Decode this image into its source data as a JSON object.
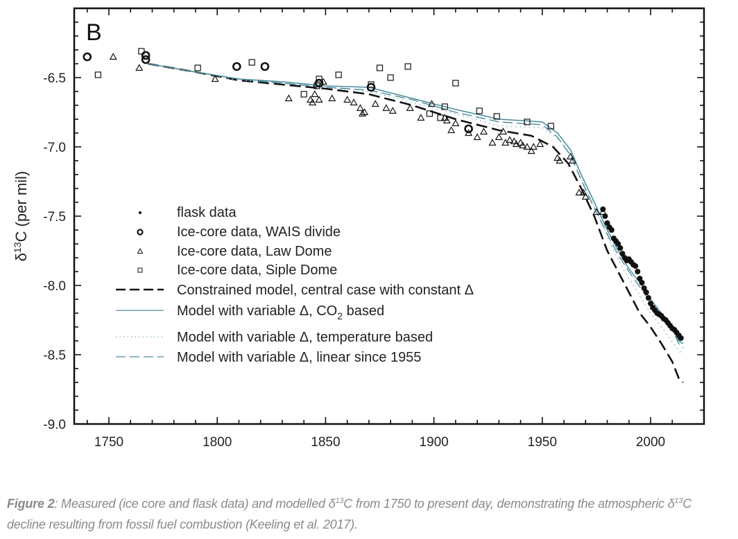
{
  "chart_data": {
    "type": "scatter",
    "panel_label": "B",
    "title": "",
    "xlabel": "",
    "ylabel_prefix": "δ",
    "ylabel_sup": "13",
    "ylabel_suffix": "C (per mil)",
    "xlim": [
      1728,
      2018
    ],
    "ylim": [
      -9.0,
      -6.0
    ],
    "xticks": [
      1750,
      1800,
      1850,
      1900,
      1950,
      2000
    ],
    "xtick_labels": [
      "1750",
      "1800",
      "1850",
      "1900",
      "1950",
      "2000"
    ],
    "yticks": [
      -6.5,
      -7.0,
      -7.5,
      -8.0,
      -8.5,
      -9.0
    ],
    "ytick_labels": [
      "-6.5",
      "-7.0",
      "-7.5",
      "-8.0",
      "-8.5",
      "-9.0"
    ],
    "grid": false,
    "legend_position": "center-left",
    "legend": [
      {
        "label": "flask data",
        "marker": "dot"
      },
      {
        "label": "Ice-core data, WAIS divide",
        "marker": "circle"
      },
      {
        "label": "Ice-core data, Law Dome",
        "marker": "triangle"
      },
      {
        "label": "Ice-core data, Siple Dome",
        "marker": "square"
      },
      {
        "label": "Constrained model, central case with constant Δ",
        "line": "dashed-black"
      },
      {
        "label_parts": [
          "Model with variable Δ, CO",
          "2",
          " based"
        ],
        "label": "Model with variable Δ, CO2 based",
        "line": "solid-blue"
      },
      {
        "label": "Model with variable Δ, temperature based",
        "line": "dotted-blue"
      },
      {
        "label": "Model with variable Δ, linear since 1955",
        "line": "dashed-blue"
      }
    ],
    "colors": {
      "black": "#111111",
      "blue": "#4a8a9c",
      "light_blue": "#8fb9c6",
      "axis": "#111111"
    },
    "series": [
      {
        "name": "Ice-core data, WAIS divide",
        "marker": "circle",
        "points": [
          [
            1740,
            -6.35
          ],
          [
            1767,
            -6.34
          ],
          [
            1767,
            -6.37
          ],
          [
            1809,
            -6.42
          ],
          [
            1822,
            -6.42
          ],
          [
            1847,
            -6.54
          ],
          [
            1871,
            -6.57
          ],
          [
            1916,
            -6.87
          ]
        ]
      },
      {
        "name": "Ice-core data, Law Dome",
        "marker": "triangle",
        "points": [
          [
            1752,
            -6.35
          ],
          [
            1764,
            -6.43
          ],
          [
            1799,
            -6.51
          ],
          [
            1833,
            -6.65
          ],
          [
            1843,
            -6.66
          ],
          [
            1844,
            -6.68
          ],
          [
            1845,
            -6.62
          ],
          [
            1847,
            -6.66
          ],
          [
            1849,
            -6.53
          ],
          [
            1853,
            -6.65
          ],
          [
            1860,
            -6.66
          ],
          [
            1863,
            -6.68
          ],
          [
            1866,
            -6.72
          ],
          [
            1867,
            -6.76
          ],
          [
            1868,
            -6.75
          ],
          [
            1873,
            -6.69
          ],
          [
            1878,
            -6.72
          ],
          [
            1881,
            -6.74
          ],
          [
            1889,
            -6.72
          ],
          [
            1894,
            -6.79
          ],
          [
            1899,
            -6.69
          ],
          [
            1905,
            -6.79
          ],
          [
            1906,
            -6.81
          ],
          [
            1908,
            -6.88
          ],
          [
            1910,
            -6.83
          ],
          [
            1916,
            -6.9
          ],
          [
            1920,
            -6.93
          ],
          [
            1923,
            -6.89
          ],
          [
            1927,
            -6.97
          ],
          [
            1930,
            -6.93
          ],
          [
            1932,
            -6.89
          ],
          [
            1933,
            -6.97
          ],
          [
            1935,
            -6.95
          ],
          [
            1937,
            -6.96
          ],
          [
            1938,
            -6.98
          ],
          [
            1940,
            -6.97
          ],
          [
            1941,
            -6.99
          ],
          [
            1943,
            -7.0
          ],
          [
            1945,
            -7.03
          ],
          [
            1946,
            -7.0
          ],
          [
            1949,
            -6.98
          ],
          [
            1957,
            -7.08
          ],
          [
            1958,
            -7.1
          ],
          [
            1963,
            -7.07
          ],
          [
            1964,
            -7.1
          ],
          [
            1967,
            -7.33
          ],
          [
            1969,
            -7.33
          ],
          [
            1970,
            -7.36
          ],
          [
            1975,
            -7.47
          ],
          [
            1978,
            -7.47
          ]
        ]
      },
      {
        "name": "Ice-core data, Siple Dome",
        "marker": "square",
        "points": [
          [
            1745,
            -6.48
          ],
          [
            1765,
            -6.31
          ],
          [
            1791,
            -6.43
          ],
          [
            1816,
            -6.39
          ],
          [
            1840,
            -6.62
          ],
          [
            1846,
            -6.56
          ],
          [
            1847,
            -6.51
          ],
          [
            1856,
            -6.48
          ],
          [
            1871,
            -6.55
          ],
          [
            1875,
            -6.43
          ],
          [
            1880,
            -6.5
          ],
          [
            1888,
            -6.42
          ],
          [
            1898,
            -6.76
          ],
          [
            1903,
            -6.79
          ],
          [
            1905,
            -6.71
          ],
          [
            1910,
            -6.54
          ],
          [
            1921,
            -6.74
          ],
          [
            1929,
            -6.78
          ],
          [
            1943,
            -6.82
          ],
          [
            1954,
            -6.85
          ]
        ]
      },
      {
        "name": "flask data",
        "marker": "dot",
        "points": [
          [
            1978,
            -7.45
          ],
          [
            1979,
            -7.5
          ],
          [
            1980,
            -7.55
          ],
          [
            1981,
            -7.58
          ],
          [
            1982,
            -7.6
          ],
          [
            1983,
            -7.66
          ],
          [
            1984,
            -7.68
          ],
          [
            1985,
            -7.7
          ],
          [
            1986,
            -7.73
          ],
          [
            1987,
            -7.77
          ],
          [
            1988,
            -7.8
          ],
          [
            1989,
            -7.82
          ],
          [
            1990,
            -7.81
          ],
          [
            1991,
            -7.83
          ],
          [
            1992,
            -7.85
          ],
          [
            1993,
            -7.86
          ],
          [
            1994,
            -7.9
          ],
          [
            1995,
            -7.95
          ],
          [
            1996,
            -7.98
          ],
          [
            1997,
            -8.02
          ],
          [
            1998,
            -8.05
          ],
          [
            1999,
            -8.09
          ],
          [
            2000,
            -8.13
          ],
          [
            2001,
            -8.16
          ],
          [
            2002,
            -8.18
          ],
          [
            2003,
            -8.2
          ],
          [
            2004,
            -8.21
          ],
          [
            2005,
            -8.22
          ],
          [
            2006,
            -8.24
          ],
          [
            2007,
            -8.25
          ],
          [
            2008,
            -8.27
          ],
          [
            2009,
            -8.29
          ],
          [
            2010,
            -8.31
          ],
          [
            2011,
            -8.32
          ],
          [
            2012,
            -8.34
          ],
          [
            2013,
            -8.36
          ],
          [
            2014,
            -8.38
          ]
        ]
      },
      {
        "name": "Constrained model, central case with constant Δ",
        "line": "dashed",
        "color": "#111111",
        "points": [
          [
            1768,
            -6.4
          ],
          [
            1790,
            -6.46
          ],
          [
            1810,
            -6.52
          ],
          [
            1830,
            -6.55
          ],
          [
            1850,
            -6.58
          ],
          [
            1870,
            -6.62
          ],
          [
            1890,
            -6.7
          ],
          [
            1910,
            -6.8
          ],
          [
            1930,
            -6.88
          ],
          [
            1945,
            -6.92
          ],
          [
            1955,
            -7.0
          ],
          [
            1962,
            -7.12
          ],
          [
            1968,
            -7.3
          ],
          [
            1974,
            -7.5
          ],
          [
            1980,
            -7.75
          ],
          [
            1985,
            -7.9
          ],
          [
            1990,
            -8.05
          ],
          [
            1995,
            -8.2
          ],
          [
            2000,
            -8.3
          ],
          [
            2005,
            -8.42
          ],
          [
            2010,
            -8.55
          ],
          [
            2013,
            -8.67
          ],
          [
            2015,
            -8.7
          ]
        ]
      },
      {
        "name": "Model with variable Δ, CO2 based",
        "line": "solid",
        "color": "#4a8a9c",
        "points": [
          [
            1768,
            -6.4
          ],
          [
            1790,
            -6.46
          ],
          [
            1810,
            -6.51
          ],
          [
            1830,
            -6.53
          ],
          [
            1850,
            -6.56
          ],
          [
            1870,
            -6.57
          ],
          [
            1890,
            -6.65
          ],
          [
            1910,
            -6.73
          ],
          [
            1930,
            -6.8
          ],
          [
            1950,
            -6.82
          ],
          [
            1957,
            -6.9
          ],
          [
            1963,
            -7.02
          ],
          [
            1968,
            -7.2
          ],
          [
            1974,
            -7.4
          ],
          [
            1980,
            -7.6
          ],
          [
            1985,
            -7.75
          ],
          [
            1990,
            -7.88
          ],
          [
            1995,
            -7.98
          ],
          [
            2000,
            -8.1
          ],
          [
            2005,
            -8.2
          ],
          [
            2010,
            -8.3
          ],
          [
            2013,
            -8.4
          ],
          [
            2015,
            -8.42
          ]
        ]
      },
      {
        "name": "Model with variable Δ, temperature based",
        "line": "dotted",
        "color": "#8fb9c6",
        "points": [
          [
            1768,
            -6.4
          ],
          [
            1790,
            -6.46
          ],
          [
            1810,
            -6.52
          ],
          [
            1830,
            -6.54
          ],
          [
            1850,
            -6.57
          ],
          [
            1870,
            -6.6
          ],
          [
            1890,
            -6.68
          ],
          [
            1910,
            -6.76
          ],
          [
            1930,
            -6.85
          ],
          [
            1950,
            -6.86
          ],
          [
            1958,
            -6.95
          ],
          [
            1965,
            -7.1
          ],
          [
            1970,
            -7.3
          ],
          [
            1976,
            -7.5
          ],
          [
            1982,
            -7.72
          ],
          [
            1988,
            -7.9
          ],
          [
            1994,
            -8.05
          ],
          [
            2000,
            -8.2
          ],
          [
            2006,
            -8.32
          ],
          [
            2012,
            -8.45
          ],
          [
            2015,
            -8.5
          ]
        ]
      },
      {
        "name": "Model with variable Δ, linear since 1955",
        "line": "dashed",
        "color": "#4a8a9c",
        "points": [
          [
            1768,
            -6.4
          ],
          [
            1790,
            -6.46
          ],
          [
            1810,
            -6.51
          ],
          [
            1830,
            -6.54
          ],
          [
            1850,
            -6.57
          ],
          [
            1870,
            -6.59
          ],
          [
            1890,
            -6.66
          ],
          [
            1910,
            -6.75
          ],
          [
            1930,
            -6.82
          ],
          [
            1950,
            -6.84
          ],
          [
            1957,
            -6.93
          ],
          [
            1963,
            -7.06
          ],
          [
            1968,
            -7.24
          ],
          [
            1974,
            -7.44
          ],
          [
            1980,
            -7.63
          ],
          [
            1985,
            -7.78
          ],
          [
            1990,
            -7.9
          ],
          [
            1995,
            -8.01
          ],
          [
            2000,
            -8.12
          ],
          [
            2005,
            -8.22
          ],
          [
            2010,
            -8.32
          ],
          [
            2013,
            -8.42
          ],
          [
            2015,
            -8.45
          ]
        ]
      }
    ]
  },
  "caption": {
    "label": "Figure 2",
    "text_1": ": Measured (ice core and flask data) and modelled δ",
    "sup_1": "13",
    "text_2": "C from 1750 to present day, demonstrating the atmospheric δ",
    "sup_2": "13",
    "text_3": "C decline resulting from fossil fuel combustion (Keeling et al. 2017)."
  }
}
